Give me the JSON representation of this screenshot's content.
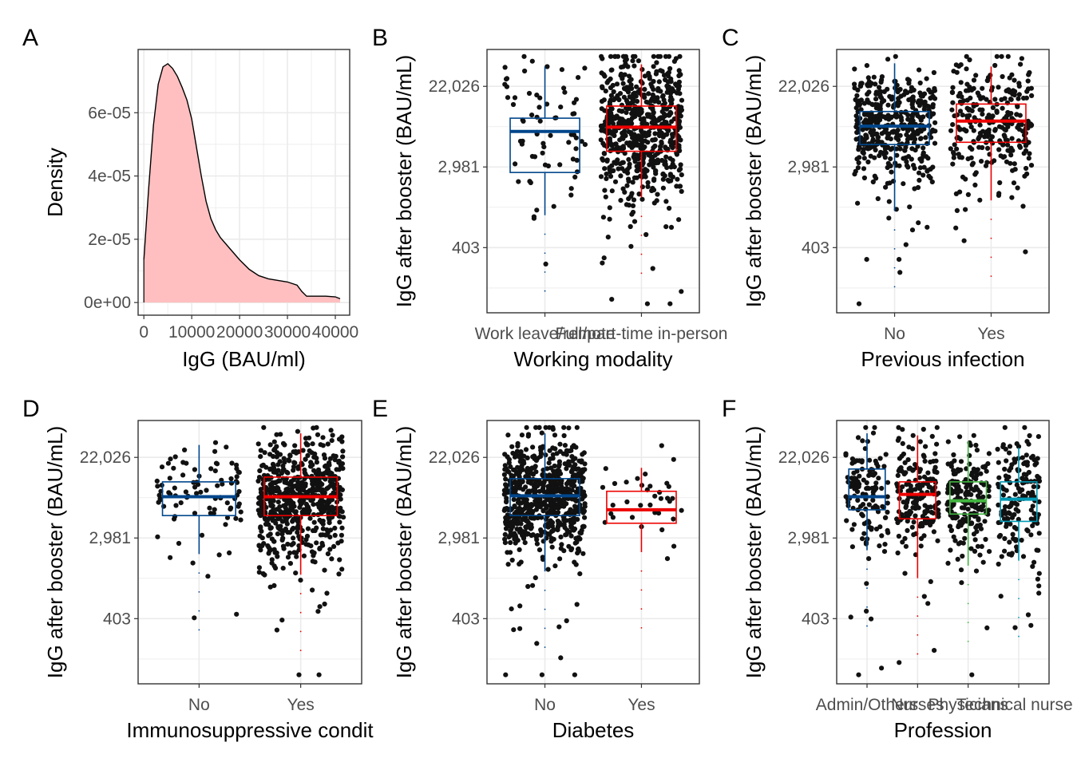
{
  "chart_data": [
    {
      "panel": "A",
      "type": "area",
      "xlabel": "IgG (BAU/ml)",
      "ylabel": "Density",
      "xlim": [
        -1200,
        43000
      ],
      "ylim": [
        -4e-06,
        8e-05
      ],
      "x_ticks": [
        0,
        10000,
        20000,
        30000,
        40000
      ],
      "x_tick_labels": [
        "0",
        "10000",
        "20000",
        "30000",
        "40000"
      ],
      "y_ticks": [
        0,
        2e-05,
        4e-05,
        6e-05
      ],
      "y_tick_labels": [
        "0e+00",
        "2e-05",
        "4e-05",
        "6e-05"
      ],
      "fill": "#ffbfc0",
      "x": [
        0,
        1000,
        2000,
        3000,
        4000,
        5000,
        6000,
        7000,
        8000,
        9000,
        10000,
        11000,
        12000,
        13000,
        14000,
        15000,
        16000,
        18000,
        20000,
        22000,
        24000,
        26000,
        28000,
        30000,
        32000,
        33000,
        34000,
        36000,
        38000,
        40000,
        41000
      ],
      "values": [
        1.35e-05,
        3.6e-05,
        5.6e-05,
        6.9e-05,
        7.45e-05,
        7.55e-05,
        7.4e-05,
        7.15e-05,
        6.8e-05,
        6.4e-05,
        5.8e-05,
        4.9e-05,
        4e-05,
        3.2e-05,
        2.65e-05,
        2.3e-05,
        2.05e-05,
        1.7e-05,
        1.35e-05,
        1.05e-05,
        8.5e-06,
        7.5e-06,
        7e-06,
        6.5e-06,
        5.5e-06,
        3.5e-06,
        2e-06,
        2e-06,
        2e-06,
        1.8e-06,
        1.2e-06
      ]
    },
    {
      "panel": "B",
      "type": "scatter",
      "xlabel": "Working modality",
      "ylabel": "IgG after booster (BAU/mL)",
      "log_scale_y": true,
      "ylim": [
        80,
        55000
      ],
      "y_ticks": [
        403,
        2981,
        22026
      ],
      "y_tick_labels": [
        "403",
        "2,981",
        "22,026"
      ],
      "categories": [
        "Work leave/remote",
        "Full/part-time in-person"
      ],
      "colors": [
        "#00468b",
        "#ed0000"
      ],
      "boxes": [
        {
          "q1": 2600,
          "median": 7200,
          "q3": 10000,
          "lower": 900,
          "upper": 36000
        },
        {
          "q1": 4400,
          "median": 8000,
          "q3": 13500,
          "lower": 1400,
          "upper": 38000
        }
      ],
      "jitter_counts": [
        70,
        650
      ]
    },
    {
      "panel": "C",
      "type": "scatter",
      "xlabel": "Previous infection",
      "ylabel": "IgG after booster (BAU/mL)",
      "log_scale_y": true,
      "ylim": [
        80,
        55000
      ],
      "y_ticks": [
        403,
        2981,
        22026
      ],
      "y_tick_labels": [
        "403",
        "2,981",
        "22,026"
      ],
      "categories": [
        "No",
        "Yes"
      ],
      "colors": [
        "#00468b",
        "#ed0000"
      ],
      "boxes": [
        {
          "q1": 5200,
          "median": 8200,
          "q3": 11800,
          "lower": 1000,
          "upper": 39000
        },
        {
          "q1": 5500,
          "median": 9300,
          "q3": 14200,
          "lower": 1300,
          "upper": 36000
        }
      ],
      "jitter_counts": [
        430,
        280
      ]
    },
    {
      "panel": "D",
      "type": "scatter",
      "xlabel": "Immunosuppressive condit",
      "ylabel": "IgG after booster (BAU/mL)",
      "log_scale_y": true,
      "ylim": [
        80,
        55000
      ],
      "y_ticks": [
        403,
        2981,
        22026
      ],
      "y_tick_labels": [
        "403",
        "2,981",
        "22,026"
      ],
      "categories": [
        "No",
        "Yes"
      ],
      "colors": [
        "#00468b",
        "#ed0000"
      ],
      "boxes": [
        {
          "q1": 5200,
          "median": 8300,
          "q3": 12000,
          "lower": 2000,
          "upper": 30000
        },
        {
          "q1": 5200,
          "median": 8300,
          "q3": 13500,
          "lower": 1200,
          "upper": 40000
        }
      ],
      "jitter_counts": [
        90,
        620
      ]
    },
    {
      "panel": "E",
      "type": "scatter",
      "xlabel": "Diabetes",
      "ylabel": "IgG after booster (BAU/mL)",
      "log_scale_y": true,
      "ylim": [
        80,
        55000
      ],
      "y_ticks": [
        403,
        2981,
        22026
      ],
      "y_tick_labels": [
        "403",
        "2,981",
        "22,026"
      ],
      "categories": [
        "No",
        "Yes"
      ],
      "colors": [
        "#00468b",
        "#ed0000"
      ],
      "boxes": [
        {
          "q1": 5200,
          "median": 8500,
          "q3": 13000,
          "lower": 1300,
          "upper": 40000
        },
        {
          "q1": 4300,
          "median": 6000,
          "q3": 9500,
          "lower": 2100,
          "upper": 17000
        }
      ],
      "jitter_counts": [
        680,
        35
      ]
    },
    {
      "panel": "F",
      "type": "scatter",
      "xlabel": "Profession",
      "ylabel": "IgG after booster (BAU/mL)",
      "log_scale_y": true,
      "ylim": [
        80,
        55000
      ],
      "y_ticks": [
        403,
        2981,
        22026
      ],
      "y_tick_labels": [
        "403",
        "2,981",
        "22,026"
      ],
      "categories": [
        "Admin/Others",
        "Nurses",
        "Physicians",
        "Technical nurses"
      ],
      "colors": [
        "#00468b",
        "#ed0000",
        "#42b540",
        "#0099b4"
      ],
      "boxes": [
        {
          "q1": 6000,
          "median": 8300,
          "q3": 16500,
          "lower": 2200,
          "upper": 40000
        },
        {
          "q1": 4800,
          "median": 8800,
          "q3": 12000,
          "lower": 1100,
          "upper": 38000
        },
        {
          "q1": 5400,
          "median": 7500,
          "q3": 12000,
          "lower": 1500,
          "upper": 33000
        },
        {
          "q1": 4500,
          "median": 7800,
          "q3": 12000,
          "lower": 1700,
          "upper": 28000
        }
      ],
      "jitter_counts": [
        130,
        180,
        200,
        170
      ]
    }
  ]
}
